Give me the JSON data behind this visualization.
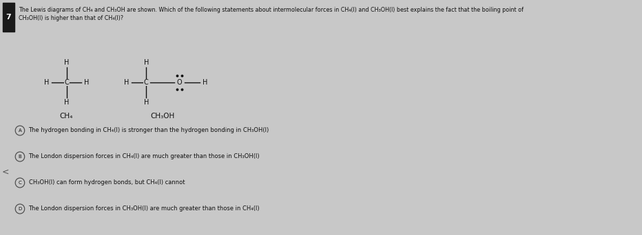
{
  "background_color": "#c8c8c8",
  "question_box_color": "#1a1a1a",
  "question_number": "7",
  "header_text_line1": "The Lewis diagrams of CH₄ and CH₃OH are shown. Which of the following statements about intermolecular forces in CH₄(l) and CH₃OH(l) best explains the fact that the boiling point of",
  "header_text_line2": "CH₃OH(l) is higher than that of CH₄(l)?",
  "header_fontsize": 5.8,
  "ch4_label": "CH₄",
  "ch3oh_label": "CH₃OH",
  "options": [
    "The hydrogen bonding in CH₄(l) is stronger than the hydrogen bonding in CH₃OH(l)",
    "The London dispersion forces in CH₄(l) are much greater than those in CH₃OH(l)",
    "CH₃OH(l) can form hydrogen bonds, but CH₄(l) cannot",
    "The London dispersion forces in CH₃OH(l) are much greater than those in CH₄(l)"
  ],
  "option_labels": [
    "A",
    "B",
    "C",
    "D"
  ],
  "option_fontsize": 6.0,
  "text_color": "#111111",
  "circle_color": "#444444",
  "molecule_color": "#111111",
  "left_arrow_char": "<"
}
